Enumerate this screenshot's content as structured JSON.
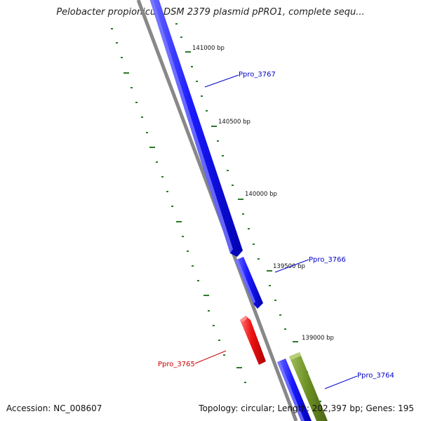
{
  "map": {
    "title": "Pelobacter propionicus DSM 2379 plasmid pPRO1, complete sequ...",
    "accession": "Accession: NC_008607",
    "summary": "Topology: circular; Length: 202,397 bp; Genes: 195"
  },
  "ticks": [
    {
      "label": "141000 bp"
    },
    {
      "label": "140500 bp"
    },
    {
      "label": "140000 bp"
    },
    {
      "label": "139500 bp"
    },
    {
      "label": "139000 bp"
    }
  ],
  "genes": [
    {
      "name": "Ppro_3767",
      "strand": "+",
      "color": "#1a1aff",
      "label_color": "#0000cc"
    },
    {
      "name": "Ppro_3766",
      "strand": "+",
      "color": "#1a1aff",
      "label_color": "#0000cc"
    },
    {
      "name": "Ppro_3765",
      "strand": "-",
      "color": "#ee1111",
      "label_color": "#cc0000"
    },
    {
      "name": "Ppro_3764",
      "strand": "+",
      "color": "#1a1aff",
      "label_color": "#0000cc"
    }
  ],
  "colors": {
    "backbone": "#888888",
    "tick": "#2a7a2a",
    "olive_feature": "#6b8e23"
  }
}
